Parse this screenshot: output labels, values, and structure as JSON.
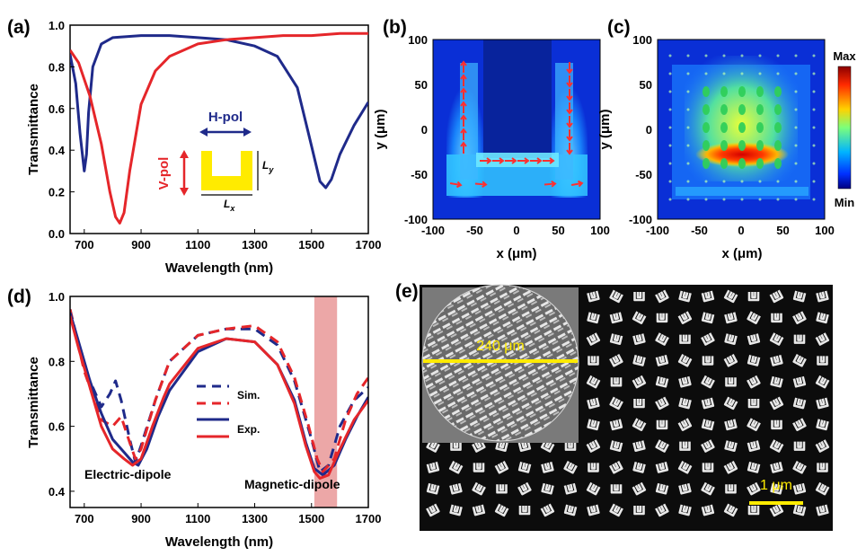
{
  "panels": {
    "a": {
      "label": "(a)"
    },
    "b": {
      "label": "(b)"
    },
    "c": {
      "label": "(c)"
    },
    "d": {
      "label": "(d)"
    },
    "e": {
      "label": "(e)"
    }
  },
  "colors": {
    "blue": "#1f2a8a",
    "red": "#e5262a",
    "yellow": "#ffeb00",
    "band": "#e58a8a"
  },
  "chart_data": [
    {
      "id": "a",
      "type": "line",
      "xlabel": "Wavelength (nm)",
      "ylabel": "Transmittance",
      "xlim": [
        650,
        1700
      ],
      "ylim": [
        0.0,
        1.0
      ],
      "xticks": [
        700,
        900,
        1100,
        1300,
        1500,
        1700
      ],
      "yticks": [
        0.0,
        0.2,
        0.4,
        0.6,
        0.8,
        1.0
      ],
      "tick_labels_x": [
        "700",
        "900",
        "1100",
        "1300",
        "1500",
        "1700"
      ],
      "tick_labels_y": [
        "0.0",
        "0.2",
        "0.4",
        "0.6",
        "0.8",
        "1.0"
      ],
      "series": [
        {
          "color": "#1f2a8a",
          "style": "solid",
          "x": [
            650,
            670,
            685,
            700,
            708,
            715,
            730,
            760,
            800,
            900,
            1000,
            1100,
            1200,
            1300,
            1380,
            1450,
            1500,
            1530,
            1550,
            1570,
            1600,
            1650,
            1700
          ],
          "y": [
            0.86,
            0.72,
            0.48,
            0.3,
            0.38,
            0.58,
            0.8,
            0.91,
            0.94,
            0.95,
            0.95,
            0.94,
            0.93,
            0.9,
            0.85,
            0.7,
            0.42,
            0.25,
            0.22,
            0.26,
            0.38,
            0.52,
            0.63
          ]
        },
        {
          "color": "#e5262a",
          "style": "solid",
          "x": [
            650,
            680,
            720,
            760,
            790,
            810,
            825,
            840,
            860,
            900,
            950,
            1000,
            1100,
            1200,
            1300,
            1400,
            1500,
            1600,
            1700
          ],
          "y": [
            0.88,
            0.82,
            0.66,
            0.43,
            0.2,
            0.08,
            0.05,
            0.1,
            0.3,
            0.62,
            0.78,
            0.85,
            0.91,
            0.93,
            0.94,
            0.95,
            0.95,
            0.96,
            0.96
          ]
        }
      ],
      "inset": {
        "hpol": "H-pol",
        "vpol": "V-pol",
        "ly_base": "L",
        "ly_sub": "y",
        "lx_base": "L",
        "lx_sub": "x"
      }
    },
    {
      "id": "b",
      "type": "heatmap",
      "xlabel": "x (μm)",
      "ylabel": "y (μm)",
      "xlim": [
        -100,
        100
      ],
      "ylim": [
        -100,
        100
      ],
      "xticks": [
        -100,
        -50,
        0,
        50,
        100
      ],
      "yticks": [
        -100,
        -50,
        0,
        50,
        100
      ],
      "tick_labels_x": [
        "-100",
        "-50",
        "0",
        "50",
        "100"
      ],
      "tick_labels_y": [
        "-100",
        "-50",
        "0",
        "50",
        "100"
      ]
    },
    {
      "id": "c",
      "type": "heatmap",
      "xlabel": "x (μm)",
      "ylabel": "y (μm)",
      "xlim": [
        -100,
        100
      ],
      "ylim": [
        -100,
        100
      ],
      "xticks": [
        -100,
        -50,
        0,
        50,
        100
      ],
      "yticks": [
        -100,
        -50,
        0,
        50,
        100
      ],
      "tick_labels_x": [
        "-100",
        "-50",
        "0",
        "50",
        "100"
      ],
      "tick_labels_y": [
        "-100",
        "-50",
        "0",
        "50",
        "100"
      ],
      "colorbar": {
        "max_label": "Max",
        "min_label": "Min"
      }
    },
    {
      "id": "d",
      "type": "line",
      "xlabel": "Wavelength (nm)",
      "ylabel": "Transmittance",
      "xlim": [
        650,
        1700
      ],
      "ylim": [
        0.35,
        1.0
      ],
      "xticks": [
        700,
        900,
        1100,
        1300,
        1500,
        1700
      ],
      "yticks": [
        0.4,
        0.6,
        0.8,
        1.0
      ],
      "tick_labels_x": [
        "700",
        "900",
        "1100",
        "1300",
        "1500",
        "1700"
      ],
      "tick_labels_y": [
        "0.4",
        "0.6",
        "0.8",
        "1.0"
      ],
      "highlight_band": [
        1510,
        1590
      ],
      "legend": {
        "sim": "Sim.",
        "exp": "Exp."
      },
      "annotations": {
        "electric": "Electric-dipole",
        "magnetic": "Magnetic-dipole"
      },
      "series": [
        {
          "color": "#1f2a8a",
          "style": "dashed",
          "x": [
            650,
            700,
            760,
            790,
            810,
            830,
            860,
            880,
            900,
            950,
            1000,
            1100,
            1200,
            1300,
            1380,
            1440,
            1500,
            1530,
            1560,
            1600,
            1650,
            1700
          ],
          "y": [
            0.96,
            0.78,
            0.66,
            0.7,
            0.74,
            0.68,
            0.56,
            0.49,
            0.54,
            0.68,
            0.8,
            0.88,
            0.9,
            0.9,
            0.85,
            0.74,
            0.56,
            0.46,
            0.48,
            0.6,
            0.68,
            0.72
          ]
        },
        {
          "color": "#e5262a",
          "style": "dashed",
          "x": [
            650,
            700,
            760,
            800,
            830,
            860,
            880,
            900,
            950,
            1000,
            1100,
            1200,
            1300,
            1380,
            1440,
            1490,
            1520,
            1540,
            1580,
            1620,
            1660,
            1700
          ],
          "y": [
            0.96,
            0.77,
            0.62,
            0.6,
            0.63,
            0.55,
            0.5,
            0.53,
            0.68,
            0.8,
            0.88,
            0.9,
            0.91,
            0.86,
            0.75,
            0.6,
            0.5,
            0.46,
            0.5,
            0.62,
            0.7,
            0.75
          ]
        },
        {
          "color": "#1f2a8a",
          "style": "solid",
          "x": [
            650,
            680,
            720,
            760,
            800,
            840,
            870,
            890,
            920,
            960,
            1000,
            1100,
            1200,
            1300,
            1380,
            1440,
            1480,
            1510,
            1540,
            1580,
            1620,
            1660,
            1700
          ],
          "y": [
            0.95,
            0.86,
            0.74,
            0.64,
            0.56,
            0.52,
            0.49,
            0.48,
            0.53,
            0.63,
            0.71,
            0.83,
            0.87,
            0.86,
            0.79,
            0.68,
            0.55,
            0.47,
            0.45,
            0.48,
            0.56,
            0.63,
            0.69
          ]
        },
        {
          "color": "#e5262a",
          "style": "solid",
          "x": [
            650,
            680,
            720,
            760,
            800,
            840,
            870,
            900,
            940,
            980,
            1000,
            1100,
            1200,
            1300,
            1380,
            1440,
            1480,
            1510,
            1530,
            1560,
            1600,
            1650,
            1700
          ],
          "y": [
            0.94,
            0.84,
            0.72,
            0.6,
            0.53,
            0.5,
            0.48,
            0.5,
            0.6,
            0.69,
            0.73,
            0.84,
            0.87,
            0.86,
            0.79,
            0.67,
            0.54,
            0.46,
            0.44,
            0.45,
            0.53,
            0.62,
            0.68
          ]
        }
      ]
    },
    {
      "id": "e",
      "type": "image",
      "inset_scale": "240 μm",
      "scale_bar": "1 μm"
    }
  ]
}
